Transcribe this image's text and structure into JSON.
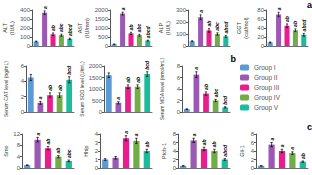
{
  "chart_data": [
    {
      "type": "bar",
      "ylabel": "ALT\n(IU/L)",
      "categories": [
        "Group I",
        "Group II",
        "Group III",
        "Group IV",
        "Group V"
      ],
      "values": [
        50,
        370,
        130,
        120,
        80
      ],
      "errors": [
        5,
        20,
        15,
        12,
        8
      ],
      "annotations": [
        null,
        "a",
        "ab",
        "abc",
        "abcd"
      ],
      "colors": [
        "#5b9bd5",
        "#9b59b6",
        "#e91e8c",
        "#70ad47",
        "#1abc9c"
      ],
      "ylim": [
        0,
        400
      ],
      "yticks": [
        0,
        100,
        200,
        300,
        400
      ],
      "grid": false,
      "tick_labels": "y",
      "legend": "right"
    },
    {
      "type": "bar",
      "title": "a",
      "ylabel": "AST\n(IU/mm)",
      "categories": [
        "Group I",
        "Group II",
        "Group III",
        "Group IV",
        "Group V"
      ],
      "values": [
        100,
        1800,
        700,
        600,
        300
      ],
      "errors": [
        10,
        80,
        60,
        50,
        25
      ],
      "annotations": [
        null,
        "a",
        "ab",
        "abc",
        "abcd"
      ],
      "colors": [
        "#5b9bd5",
        "#9b59b6",
        "#e91e8c",
        "#70ad47",
        "#1abc9c"
      ],
      "ylim": [
        0,
        2000
      ],
      "yticks": [
        0,
        500,
        1000,
        1500,
        2000
      ],
      "grid": false,
      "tick_labels": "y"
    },
    {
      "type": "bar",
      "ylabel": "ALP\n(IU/L)",
      "categories": [
        "Group I",
        "Group II",
        "Group III",
        "Group IV",
        "Group V"
      ],
      "values": [
        40,
        240,
        130,
        100,
        80
      ],
      "errors": [
        4,
        20,
        15,
        10,
        8
      ],
      "annotations": [
        null,
        "a",
        "ab",
        "abc",
        "abcd"
      ],
      "colors": [
        "#5b9bd5",
        "#9b59b6",
        "#e91e8c",
        "#70ad47",
        "#1abc9c"
      ],
      "ylim": [
        0,
        300
      ],
      "yticks": [
        0,
        100,
        200,
        300
      ],
      "grid": false,
      "tick_labels": "y"
    },
    {
      "type": "bar",
      "ylabel": "GGT\n(cat/mol)",
      "categories": [
        "Group I",
        "Group II",
        "Group III",
        "Group IV",
        "Group V"
      ],
      "values": [
        8,
        70,
        45,
        35,
        25
      ],
      "errors": [
        1,
        5,
        4,
        3,
        3
      ],
      "annotations": [
        null,
        "a",
        "ab",
        "ab",
        "abcd"
      ],
      "colors": [
        "#5b9bd5",
        "#9b59b6",
        "#e91e8c",
        "#70ad47",
        "#1abc9c"
      ],
      "ylim": [
        0,
        80
      ],
      "yticks": [
        0,
        20,
        40,
        60,
        80
      ],
      "grid": false,
      "tick_labels": "y"
    },
    {
      "type": "bar",
      "ylabel": "Serum CAT level (ng/mL)",
      "categories": [
        "Group I",
        "Group II",
        "Group III",
        "Group IV",
        "Group V"
      ],
      "values": [
        4.5,
        1.2,
        2.2,
        2.2,
        4.2
      ],
      "errors": [
        0.4,
        0.2,
        0.3,
        0.3,
        0.4
      ],
      "annotations": [
        null,
        "a",
        "ab",
        "ab",
        "bcd"
      ],
      "colors": [
        "#5b9bd5",
        "#9b59b6",
        "#e91e8c",
        "#70ad47",
        "#1abc9c"
      ],
      "ylim": [
        0,
        6
      ],
      "yticks": [
        0,
        2,
        4,
        6
      ],
      "grid": false,
      "tick_labels": "y"
    },
    {
      "type": "bar",
      "ylabel": "Serum SOD level (U/mL)",
      "categories": [
        "Group I",
        "Group II",
        "Group III",
        "Group IV",
        "Group V"
      ],
      "values": [
        1600,
        400,
        1100,
        1100,
        1650
      ],
      "errors": [
        100,
        50,
        80,
        80,
        100
      ],
      "annotations": [
        null,
        "a",
        "ab",
        "ab",
        "bcd"
      ],
      "colors": [
        "#5b9bd5",
        "#9b59b6",
        "#e91e8c",
        "#70ad47",
        "#1abc9c"
      ],
      "ylim": [
        0,
        2000
      ],
      "yticks": [
        0,
        500,
        1000,
        1500,
        2000
      ],
      "grid": false,
      "tick_labels": "y"
    },
    {
      "type": "bar",
      "title": "b",
      "ylabel": "Serum MDA level (nmol/mL)",
      "categories": [
        "Group I",
        "Group II",
        "Group III",
        "Group IV",
        "Group V"
      ],
      "values": [
        0.5,
        6.5,
        3.2,
        2.0,
        0.8
      ],
      "errors": [
        0.05,
        0.5,
        0.3,
        0.2,
        0.1
      ],
      "annotations": [
        null,
        "a",
        "ab",
        "abc",
        "bcd"
      ],
      "colors": [
        "#5b9bd5",
        "#9b59b6",
        "#e91e8c",
        "#70ad47",
        "#1abc9c"
      ],
      "ylim": [
        0,
        8
      ],
      "yticks": [
        0,
        2,
        4,
        6,
        8
      ],
      "grid": false,
      "tick_labels": "y"
    },
    {
      "type": "bar",
      "ylabel": "Smo",
      "categories": [
        "Group I",
        "Group II",
        "Group III",
        "Group IV",
        "Group V"
      ],
      "values": [
        1,
        10,
        7,
        4,
        2.5
      ],
      "errors": [
        0.1,
        0.8,
        0.6,
        0.4,
        0.3
      ],
      "annotations": [
        null,
        "a",
        "ab",
        "ab",
        "abc"
      ],
      "colors": [
        "#5b9bd5",
        "#9b59b6",
        "#e91e8c",
        "#70ad47",
        "#1abc9c"
      ],
      "ylim": [
        0,
        12
      ],
      "yticks": [
        0,
        4,
        8,
        12
      ],
      "grid": false,
      "tick_labels": "y"
    },
    {
      "type": "bar",
      "ylabel": "Hhip",
      "categories": [
        "Group I",
        "Group II",
        "Group III",
        "Group IV",
        "Group V"
      ],
      "values": [
        1,
        1.2,
        3.5,
        3.2,
        2.0
      ],
      "errors": [
        0.1,
        0.15,
        0.3,
        0.3,
        0.2
      ],
      "annotations": [
        null,
        null,
        "a",
        "a",
        "ab"
      ],
      "colors": [
        "#5b9bd5",
        "#9b59b6",
        "#e91e8c",
        "#70ad47",
        "#1abc9c"
      ],
      "ylim": [
        0,
        4
      ],
      "yticks": [
        0,
        1,
        2,
        3,
        4
      ],
      "grid": false,
      "tick_labels": "y"
    },
    {
      "type": "bar",
      "ylabel": "Ptch-1",
      "categories": [
        "Group I",
        "Group II",
        "Group III",
        "Group IV",
        "Group V"
      ],
      "values": [
        0.5,
        6.5,
        4.5,
        4.0,
        2.0
      ],
      "errors": [
        0.05,
        0.5,
        0.4,
        0.4,
        0.2
      ],
      "annotations": [
        null,
        "a",
        "ab",
        "ab",
        "abcd"
      ],
      "colors": [
        "#5b9bd5",
        "#9b59b6",
        "#e91e8c",
        "#70ad47",
        "#1abc9c"
      ],
      "ylim": [
        0,
        8
      ],
      "yticks": [
        0,
        2,
        4,
        6,
        8
      ],
      "grid": false,
      "tick_labels": "y"
    },
    {
      "type": "bar",
      "title": "c",
      "ylabel": "Gli-1",
      "categories": [
        "Group I",
        "Group II",
        "Group III",
        "Group IV",
        "Group V"
      ],
      "values": [
        0.5,
        5.5,
        4.0,
        3.5,
        1.5
      ],
      "errors": [
        0.05,
        0.5,
        0.4,
        0.3,
        0.15
      ],
      "annotations": [
        null,
        "a",
        "a",
        "a",
        "ab"
      ],
      "colors": [
        "#5b9bd5",
        "#9b59b6",
        "#e91e8c",
        "#70ad47",
        "#1abc9c"
      ],
      "ylim": [
        0,
        8
      ],
      "yticks": [
        0,
        2,
        4,
        6,
        8
      ],
      "grid": false,
      "tick_labels": "y"
    }
  ]
}
